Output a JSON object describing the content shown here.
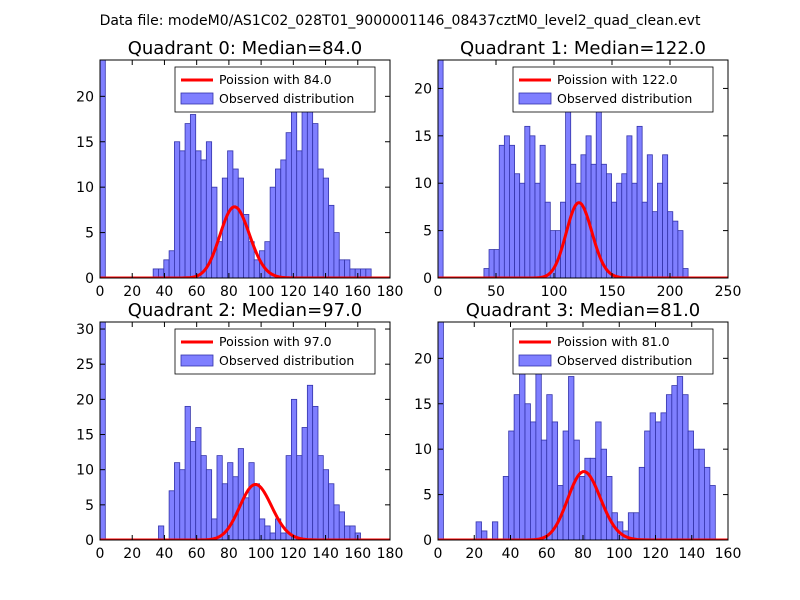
{
  "figure": {
    "suptitle": "Data file: modeM0/AS1C02_028T01_9000001146_08437cztM0_level2_quad_clean.evt"
  },
  "colors": {
    "bar_fill": "#7f7fff",
    "bar_edge": "#3333aa",
    "poisson": "#ff0000",
    "axis": "#000000"
  },
  "chart_data": [
    {
      "type": "bar",
      "title": "Quadrant 0: Median=84.0",
      "xlim": [
        0,
        180
      ],
      "ylim": [
        0,
        24
      ],
      "xticks": [
        0,
        20,
        40,
        60,
        80,
        100,
        120,
        140,
        160,
        180
      ],
      "yticks": [
        0,
        5,
        10,
        15,
        20
      ],
      "bin_width": 3.3,
      "bin_starts": [
        0,
        33,
        36.3,
        39.6,
        42.9,
        46.2,
        49.5,
        52.8,
        56.1,
        59.4,
        62.7,
        66,
        69.3,
        72.6,
        75.9,
        79.2,
        82.5,
        85.8,
        89.1,
        92.4,
        95.7,
        99,
        102.3,
        105.6,
        108.9,
        112.2,
        115.5,
        118.8,
        122.1,
        125.4,
        128.7,
        132,
        135.3,
        138.6,
        141.9,
        145.2,
        148.5,
        151.8,
        155.1,
        158.4,
        161.7,
        165
      ],
      "counts": [
        24,
        1,
        1,
        2,
        3,
        15,
        14,
        17,
        18,
        14,
        13,
        15,
        10,
        4,
        11,
        14,
        12,
        11,
        7,
        4,
        2,
        3,
        4,
        10,
        12,
        13,
        16,
        20,
        14,
        21,
        19,
        17,
        12,
        11,
        8,
        5,
        2,
        2,
        1,
        1,
        1,
        1
      ],
      "poisson": {
        "label": "Poission with 84.0",
        "mean": 84.0,
        "scale": 180
      },
      "legend": [
        "Poission with 84.0",
        "Observed distribution"
      ]
    },
    {
      "type": "bar",
      "title": "Quadrant 1: Median=122.0",
      "xlim": [
        0,
        250
      ],
      "ylim": [
        0,
        23
      ],
      "xticks": [
        0,
        50,
        100,
        150,
        200,
        250
      ],
      "yticks": [
        0,
        5,
        10,
        15,
        20
      ],
      "bin_width": 4.4,
      "bin_starts": [
        0,
        39.6,
        44,
        48.4,
        52.8,
        57.2,
        61.6,
        66,
        70.4,
        74.8,
        79.2,
        83.6,
        88,
        92.4,
        96.8,
        101.2,
        105.6,
        110,
        114.4,
        118.8,
        123.2,
        127.6,
        132,
        136.4,
        140.8,
        145.2,
        149.6,
        154,
        158.4,
        162.8,
        167.2,
        171.6,
        176,
        180.4,
        184.8,
        189.2,
        193.6,
        198,
        202.4,
        206.8,
        211.2
      ],
      "counts": [
        23,
        1,
        3,
        3,
        14,
        15,
        14,
        11,
        10,
        16,
        15,
        10,
        14,
        8,
        5,
        5,
        8,
        20,
        12,
        10,
        13,
        15,
        12,
        18,
        12,
        11,
        8,
        10,
        11,
        15,
        10,
        16,
        8,
        13,
        7,
        10,
        13,
        7,
        6,
        5,
        1
      ],
      "poisson": {
        "label": "Poission with 122.0",
        "mean": 122.0,
        "scale": 220
      },
      "legend": [
        "Poission with 122.0",
        "Observed distribution"
      ]
    },
    {
      "type": "bar",
      "title": "Quadrant 2: Median=97.0",
      "xlim": [
        0,
        180
      ],
      "ylim": [
        0,
        31
      ],
      "xticks": [
        0,
        20,
        40,
        60,
        80,
        100,
        120,
        140,
        160,
        180
      ],
      "yticks": [
        0,
        5,
        10,
        15,
        20,
        25,
        30
      ],
      "bin_width": 3.3,
      "bin_starts": [
        0,
        36.3,
        42.9,
        46.2,
        49.5,
        52.8,
        56.1,
        59.4,
        62.7,
        66,
        69.3,
        72.6,
        75.9,
        79.2,
        82.5,
        85.8,
        89.1,
        92.4,
        95.7,
        99,
        102.3,
        105.6,
        108.9,
        112.2,
        115.5,
        118.8,
        122.1,
        125.4,
        128.7,
        132,
        135.3,
        138.6,
        141.9,
        145.2,
        148.5,
        151.8,
        155.1,
        158.4
      ],
      "counts": [
        31,
        2,
        7,
        11,
        10,
        19,
        14,
        16,
        12,
        10,
        3,
        12,
        8,
        11,
        9,
        13,
        6,
        11,
        8,
        3,
        2,
        1,
        3,
        1,
        12,
        20,
        12,
        16,
        22,
        19,
        12,
        10,
        8,
        5,
        4,
        2,
        2,
        1
      ],
      "poisson": {
        "label": "Poission with 97.0",
        "mean": 97.0,
        "scale": 195
      },
      "legend": [
        "Poission with 97.0",
        "Observed distribution"
      ]
    },
    {
      "type": "bar",
      "title": "Quadrant 3: Median=81.0",
      "xlim": [
        0,
        160
      ],
      "ylim": [
        0,
        24
      ],
      "xticks": [
        0,
        20,
        40,
        60,
        80,
        100,
        120,
        140,
        160
      ],
      "yticks": [
        0,
        5,
        10,
        15,
        20
      ],
      "bin_width": 3.0,
      "bin_starts": [
        0,
        21,
        24,
        30,
        36,
        39,
        42,
        45,
        48,
        51,
        54,
        57,
        60,
        63,
        66,
        69,
        72,
        75,
        78,
        81,
        84,
        87,
        90,
        93,
        96,
        99,
        102,
        105,
        108,
        111,
        114,
        117,
        120,
        123,
        126,
        129,
        132,
        135,
        138,
        141,
        144,
        147,
        150
      ],
      "counts": [
        24,
        2,
        1,
        2,
        7,
        12,
        16,
        21,
        15,
        13,
        19,
        11,
        16,
        13,
        6,
        12,
        18,
        11,
        7,
        9,
        9,
        13,
        10,
        7,
        3,
        2,
        1,
        3,
        3,
        8,
        12,
        14,
        13,
        14,
        16,
        17,
        18,
        16,
        12,
        10,
        10,
        8,
        6
      ],
      "poisson": {
        "label": "Poission with 81.0",
        "mean": 81.0,
        "scale": 170
      },
      "legend": [
        "Poission with 81.0",
        "Observed distribution"
      ]
    }
  ]
}
